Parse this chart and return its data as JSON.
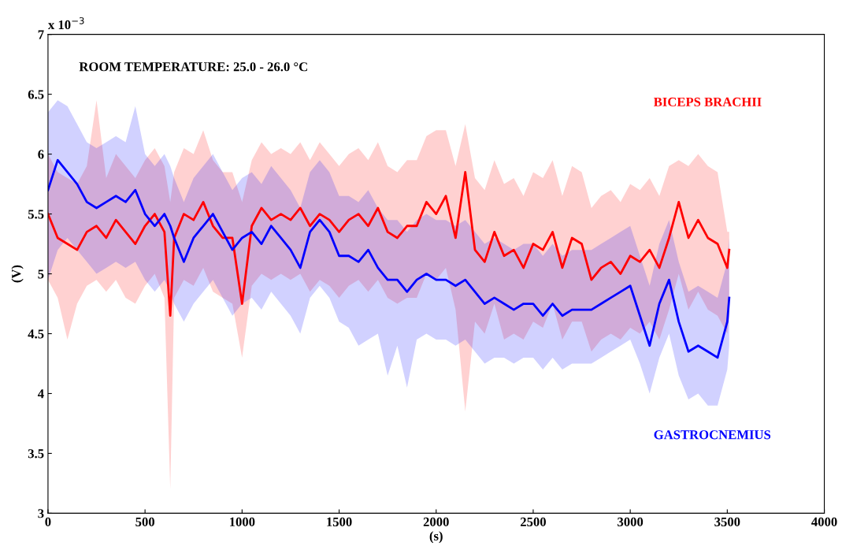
{
  "chart_data": {
    "type": "line",
    "xlabel": "(s)",
    "ylabel": "(V)",
    "annotations": [
      "x 10$^{−3}$",
      "ROOM TEMPERATURE: 25.0 - 26.0 °C"
    ],
    "xlim": [
      0,
      4000
    ],
    "xticks": [
      0,
      500,
      1000,
      1500,
      2000,
      2500,
      3000,
      3500,
      4000
    ],
    "ylim": [
      3,
      7
    ],
    "yticks": [
      3,
      3.5,
      4,
      4.5,
      5,
      5.5,
      6,
      6.5,
      7
    ],
    "grid": false,
    "legend": false,
    "marker": "none",
    "line_style": "solid",
    "x": [
      0,
      50,
      100,
      150,
      200,
      250,
      300,
      350,
      400,
      450,
      500,
      550,
      600,
      630,
      650,
      700,
      750,
      800,
      850,
      900,
      950,
      1000,
      1050,
      1100,
      1150,
      1200,
      1250,
      1300,
      1350,
      1400,
      1450,
      1500,
      1550,
      1600,
      1650,
      1700,
      1750,
      1800,
      1850,
      1900,
      1950,
      2000,
      2050,
      2100,
      2150,
      2200,
      2250,
      2300,
      2350,
      2400,
      2450,
      2500,
      2550,
      2600,
      2650,
      2700,
      2750,
      2800,
      2850,
      2900,
      2950,
      3000,
      3050,
      3100,
      3150,
      3200,
      3250,
      3300,
      3350,
      3400,
      3450,
      3500,
      3510
    ],
    "series": [
      {
        "name": "BICEPS BRACHII",
        "color": "#ff0000",
        "values": [
          5.5,
          5.3,
          5.25,
          5.2,
          5.35,
          5.4,
          5.3,
          5.45,
          5.35,
          5.25,
          5.4,
          5.5,
          5.35,
          4.65,
          5.3,
          5.5,
          5.45,
          5.6,
          5.4,
          5.3,
          5.3,
          4.75,
          5.4,
          5.55,
          5.45,
          5.5,
          5.45,
          5.55,
          5.4,
          5.5,
          5.45,
          5.35,
          5.45,
          5.5,
          5.4,
          5.55,
          5.35,
          5.3,
          5.4,
          5.4,
          5.6,
          5.5,
          5.65,
          5.3,
          5.85,
          5.2,
          5.1,
          5.35,
          5.15,
          5.2,
          5.05,
          5.25,
          5.2,
          5.35,
          5.05,
          5.3,
          5.25,
          4.95,
          5.05,
          5.1,
          5.0,
          5.15,
          5.1,
          5.2,
          5.05,
          5.3,
          5.6,
          5.3,
          5.45,
          5.3,
          5.25,
          5.05,
          5.2
        ],
        "lower": [
          4.95,
          4.8,
          4.45,
          4.75,
          4.9,
          4.95,
          4.85,
          4.95,
          4.8,
          4.75,
          4.9,
          5.0,
          4.8,
          3.2,
          4.8,
          4.95,
          4.9,
          5.05,
          4.85,
          4.8,
          4.75,
          4.3,
          4.9,
          5.0,
          4.95,
          5.0,
          4.95,
          5.0,
          4.85,
          4.95,
          4.9,
          4.8,
          4.9,
          4.95,
          4.85,
          4.95,
          4.8,
          4.75,
          4.8,
          4.8,
          5.0,
          4.95,
          5.05,
          4.7,
          3.85,
          4.6,
          4.5,
          4.75,
          4.45,
          4.5,
          4.45,
          4.6,
          4.55,
          4.75,
          4.45,
          4.6,
          4.6,
          4.35,
          4.45,
          4.5,
          4.45,
          4.55,
          4.5,
          4.6,
          4.45,
          4.7,
          5.0,
          4.7,
          4.85,
          4.7,
          4.65,
          4.5,
          4.65
        ],
        "upper": [
          6.0,
          5.85,
          5.8,
          5.75,
          5.9,
          6.45,
          5.8,
          6.0,
          5.9,
          5.8,
          5.95,
          6.05,
          5.9,
          5.6,
          5.85,
          6.05,
          6.0,
          6.2,
          5.95,
          5.85,
          5.85,
          5.6,
          5.95,
          6.1,
          6.0,
          6.05,
          6.0,
          6.1,
          5.95,
          6.1,
          6.0,
          5.9,
          6.0,
          6.05,
          5.95,
          6.1,
          5.9,
          5.85,
          5.95,
          5.95,
          6.15,
          6.2,
          6.2,
          5.9,
          6.25,
          5.8,
          5.7,
          5.95,
          5.75,
          5.8,
          5.65,
          5.85,
          5.8,
          5.95,
          5.65,
          5.9,
          5.85,
          5.55,
          5.65,
          5.7,
          5.6,
          5.75,
          5.7,
          5.8,
          5.65,
          5.9,
          5.95,
          5.9,
          6.0,
          5.9,
          5.85,
          5.35,
          5.35
        ]
      },
      {
        "name": "GASTROCNEMIUS",
        "color": "#0000ff",
        "values": [
          5.7,
          5.95,
          5.85,
          5.75,
          5.6,
          5.55,
          5.6,
          5.65,
          5.6,
          5.7,
          5.5,
          5.4,
          5.5,
          5.4,
          5.3,
          5.1,
          5.3,
          5.4,
          5.5,
          5.35,
          5.2,
          5.3,
          5.35,
          5.25,
          5.4,
          5.3,
          5.2,
          5.05,
          5.35,
          5.45,
          5.35,
          5.15,
          5.15,
          5.1,
          5.2,
          5.05,
          4.95,
          4.95,
          4.85,
          4.95,
          5.0,
          4.95,
          4.95,
          4.9,
          4.95,
          4.85,
          4.75,
          4.8,
          4.75,
          4.7,
          4.75,
          4.75,
          4.65,
          4.75,
          4.65,
          4.7,
          4.7,
          4.7,
          4.75,
          4.8,
          4.85,
          4.9,
          4.65,
          4.4,
          4.75,
          4.95,
          4.6,
          4.35,
          4.4,
          4.35,
          4.3,
          4.6,
          4.8
        ],
        "lower": [
          4.95,
          5.2,
          5.3,
          5.2,
          5.1,
          5.0,
          5.05,
          5.1,
          5.05,
          5.1,
          4.95,
          4.85,
          4.95,
          4.85,
          4.75,
          4.6,
          4.75,
          4.85,
          4.95,
          4.8,
          4.65,
          4.75,
          4.8,
          4.7,
          4.85,
          4.75,
          4.65,
          4.5,
          4.8,
          4.9,
          4.8,
          4.6,
          4.55,
          4.4,
          4.45,
          4.5,
          4.15,
          4.4,
          4.05,
          4.45,
          4.5,
          4.45,
          4.45,
          4.4,
          4.45,
          4.35,
          4.25,
          4.3,
          4.3,
          4.25,
          4.3,
          4.3,
          4.2,
          4.3,
          4.2,
          4.25,
          4.25,
          4.25,
          4.3,
          4.35,
          4.4,
          4.45,
          4.25,
          4.0,
          4.3,
          4.5,
          4.15,
          3.95,
          4.0,
          3.9,
          3.9,
          4.2,
          4.4
        ],
        "upper": [
          6.35,
          6.45,
          6.4,
          6.25,
          6.1,
          6.05,
          6.1,
          6.15,
          6.1,
          6.4,
          6.0,
          5.9,
          6.0,
          5.9,
          5.8,
          5.6,
          5.8,
          5.9,
          6.0,
          5.85,
          5.7,
          5.8,
          5.85,
          5.75,
          5.9,
          5.8,
          5.7,
          5.55,
          5.85,
          5.95,
          5.85,
          5.65,
          5.65,
          5.6,
          5.7,
          5.55,
          5.45,
          5.45,
          5.35,
          5.45,
          5.5,
          5.45,
          5.45,
          5.4,
          5.45,
          5.35,
          5.25,
          5.3,
          5.25,
          5.2,
          5.25,
          5.25,
          5.15,
          5.25,
          5.15,
          5.2,
          5.2,
          5.2,
          5.25,
          5.3,
          5.35,
          5.4,
          5.15,
          4.9,
          5.25,
          5.45,
          5.1,
          4.85,
          4.9,
          4.85,
          4.8,
          5.1,
          5.3
        ]
      }
    ]
  }
}
